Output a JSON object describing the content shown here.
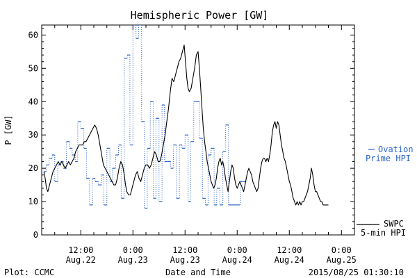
{
  "colors": {
    "swpc": "#000000",
    "ovation": "#2a62c8"
  },
  "chart_data": {
    "type": "line",
    "title": "Hemispheric Power [GW]",
    "ylabel": "P [GW]",
    "xlabel": "Date and Time",
    "x_unit": "hours since 2015-08-21 00:00 UTC",
    "xlim": [
      3,
      75
    ],
    "ylim": [
      0,
      63
    ],
    "yticks": [
      0,
      10,
      20,
      30,
      40,
      50,
      60
    ],
    "xticks": [
      {
        "t": 12,
        "time": "12:00",
        "date": "Aug.22"
      },
      {
        "t": 24,
        "time": "0:00",
        "date": "Aug.23"
      },
      {
        "t": 36,
        "time": "12:00",
        "date": "Aug.23"
      },
      {
        "t": 48,
        "time": "0:00",
        "date": "Aug.24"
      },
      {
        "t": 60,
        "time": "12:00",
        "date": "Aug.24"
      },
      {
        "t": 72,
        "time": "0:00",
        "date": "Aug.25"
      }
    ],
    "footer_left": "Plot: CCMC",
    "footer_right": "2015/08/25 01:30:10",
    "legend": {
      "ovation": {
        "line1": "Ovation",
        "line2": "Prime HPI"
      },
      "swpc": {
        "line1": "SWPC",
        "line2": "5-min HPI"
      }
    },
    "series": [
      {
        "name": "SWPC 5-min HPI",
        "style": "solid",
        "points": [
          [
            3.5,
            19
          ],
          [
            3.8,
            17
          ],
          [
            4.1,
            14
          ],
          [
            4.4,
            13
          ],
          [
            4.8,
            15
          ],
          [
            5.2,
            17
          ],
          [
            5.6,
            19
          ],
          [
            6,
            20
          ],
          [
            6.4,
            21
          ],
          [
            6.8,
            22
          ],
          [
            7.2,
            21
          ],
          [
            7.6,
            22
          ],
          [
            8,
            21
          ],
          [
            8.4,
            20
          ],
          [
            8.8,
            21
          ],
          [
            9.2,
            22
          ],
          [
            9.6,
            21
          ],
          [
            10,
            22
          ],
          [
            10.4,
            23
          ],
          [
            10.8,
            25
          ],
          [
            11.2,
            26
          ],
          [
            11.6,
            27
          ],
          [
            12,
            27
          ],
          [
            12.4,
            27
          ],
          [
            12.8,
            28
          ],
          [
            13.2,
            28
          ],
          [
            13.6,
            29
          ],
          [
            14,
            30
          ],
          [
            14.4,
            31
          ],
          [
            14.8,
            32
          ],
          [
            15.2,
            33
          ],
          [
            15.6,
            32
          ],
          [
            16,
            30
          ],
          [
            16.4,
            27
          ],
          [
            16.8,
            24
          ],
          [
            17.2,
            21
          ],
          [
            17.6,
            20
          ],
          [
            18,
            19
          ],
          [
            18.4,
            18
          ],
          [
            18.8,
            17
          ],
          [
            19.2,
            16
          ],
          [
            19.6,
            15
          ],
          [
            20,
            15
          ],
          [
            20.4,
            17
          ],
          [
            20.8,
            20
          ],
          [
            21.2,
            22
          ],
          [
            21.6,
            21
          ],
          [
            22,
            18
          ],
          [
            22.3,
            15
          ],
          [
            22.6,
            13
          ],
          [
            23,
            12
          ],
          [
            23.4,
            12
          ],
          [
            23.8,
            14
          ],
          [
            24.2,
            16
          ],
          [
            24.6,
            18
          ],
          [
            25,
            19
          ],
          [
            25.4,
            17
          ],
          [
            25.8,
            16
          ],
          [
            26.2,
            18
          ],
          [
            26.6,
            20
          ],
          [
            27,
            21
          ],
          [
            27.4,
            21
          ],
          [
            27.8,
            20
          ],
          [
            28.2,
            21
          ],
          [
            28.6,
            23
          ],
          [
            29,
            25
          ],
          [
            29.4,
            24
          ],
          [
            29.8,
            22
          ],
          [
            30.2,
            22
          ],
          [
            30.6,
            24
          ],
          [
            31,
            27
          ],
          [
            31.4,
            30
          ],
          [
            31.8,
            34
          ],
          [
            32.2,
            38
          ],
          [
            32.6,
            43
          ],
          [
            33,
            47
          ],
          [
            33.4,
            46
          ],
          [
            33.8,
            48
          ],
          [
            34.2,
            50
          ],
          [
            34.6,
            52
          ],
          [
            35,
            53
          ],
          [
            35.4,
            55
          ],
          [
            35.8,
            57
          ],
          [
            36.1,
            52
          ],
          [
            36.4,
            47
          ],
          [
            36.7,
            44
          ],
          [
            37,
            43
          ],
          [
            37.4,
            44
          ],
          [
            37.8,
            47
          ],
          [
            38.2,
            50
          ],
          [
            38.6,
            54
          ],
          [
            39,
            55
          ],
          [
            39.3,
            50
          ],
          [
            39.6,
            44
          ],
          [
            39.9,
            38
          ],
          [
            40.2,
            32
          ],
          [
            40.5,
            28
          ],
          [
            40.8,
            25
          ],
          [
            41.1,
            22
          ],
          [
            41.4,
            20
          ],
          [
            41.7,
            18
          ],
          [
            42,
            16
          ],
          [
            42.3,
            15
          ],
          [
            42.6,
            14
          ],
          [
            42.9,
            15
          ],
          [
            43.2,
            17
          ],
          [
            43.5,
            20
          ],
          [
            43.8,
            22
          ],
          [
            44.1,
            23
          ],
          [
            44.4,
            21
          ],
          [
            44.7,
            22
          ],
          [
            45,
            20
          ],
          [
            45.3,
            17
          ],
          [
            45.6,
            15
          ],
          [
            45.9,
            13
          ],
          [
            46.2,
            16
          ],
          [
            46.5,
            19
          ],
          [
            46.8,
            21
          ],
          [
            47.1,
            20
          ],
          [
            47.4,
            17
          ],
          [
            47.7,
            15
          ],
          [
            48,
            14
          ],
          [
            48.3,
            15
          ],
          [
            48.6,
            16
          ],
          [
            48.9,
            15
          ],
          [
            49.2,
            14
          ],
          [
            49.5,
            13
          ],
          [
            49.8,
            15
          ],
          [
            50.1,
            17
          ],
          [
            50.4,
            19
          ],
          [
            50.7,
            20
          ],
          [
            51,
            19
          ],
          [
            51.3,
            18
          ],
          [
            51.6,
            16
          ],
          [
            51.9,
            15
          ],
          [
            52.2,
            14
          ],
          [
            52.5,
            13
          ],
          [
            52.8,
            14
          ],
          [
            53.1,
            17
          ],
          [
            53.4,
            20
          ],
          [
            53.7,
            22
          ],
          [
            54,
            23
          ],
          [
            54.3,
            23
          ],
          [
            54.6,
            22
          ],
          [
            54.9,
            23
          ],
          [
            55.2,
            22
          ],
          [
            55.5,
            24
          ],
          [
            55.8,
            27
          ],
          [
            56.1,
            31
          ],
          [
            56.4,
            33
          ],
          [
            56.7,
            34
          ],
          [
            57,
            32
          ],
          [
            57.3,
            34
          ],
          [
            57.6,
            33
          ],
          [
            57.9,
            30
          ],
          [
            58.2,
            27
          ],
          [
            58.5,
            25
          ],
          [
            58.8,
            23
          ],
          [
            59.1,
            22
          ],
          [
            59.4,
            20
          ],
          [
            59.7,
            18
          ],
          [
            60,
            16
          ],
          [
            60.3,
            15
          ],
          [
            60.6,
            13
          ],
          [
            60.9,
            11
          ],
          [
            61.2,
            10
          ],
          [
            61.5,
            9
          ],
          [
            61.8,
            10
          ],
          [
            62.1,
            9
          ],
          [
            62.4,
            10
          ],
          [
            62.7,
            9
          ],
          [
            63,
            10
          ],
          [
            63.3,
            10
          ],
          [
            63.6,
            11
          ],
          [
            63.9,
            12
          ],
          [
            64.2,
            13
          ],
          [
            64.5,
            15
          ],
          [
            64.8,
            17
          ],
          [
            65.1,
            20
          ],
          [
            65.4,
            18
          ],
          [
            65.7,
            15
          ],
          [
            66,
            13
          ],
          [
            66.3,
            13
          ],
          [
            66.6,
            12
          ],
          [
            66.9,
            11
          ],
          [
            67.2,
            10
          ],
          [
            67.5,
            10
          ],
          [
            67.8,
            9
          ],
          [
            68.1,
            9
          ],
          [
            68.4,
            9
          ],
          [
            68.7,
            9
          ],
          [
            69,
            9
          ]
        ]
      },
      {
        "name": "Ovation Prime HPI",
        "style": "step",
        "points": [
          [
            3.5,
            19
          ],
          [
            4,
            21
          ],
          [
            4.7,
            23
          ],
          [
            5.4,
            24
          ],
          [
            6,
            16
          ],
          [
            6.7,
            21
          ],
          [
            7.4,
            22
          ],
          [
            8,
            20
          ],
          [
            8.7,
            28
          ],
          [
            9.4,
            26
          ],
          [
            10,
            24
          ],
          [
            10.7,
            22
          ],
          [
            11.3,
            34
          ],
          [
            12,
            32
          ],
          [
            12.7,
            26
          ],
          [
            13.3,
            17
          ],
          [
            14,
            9
          ],
          [
            14.7,
            17
          ],
          [
            15.3,
            16
          ],
          [
            16,
            15
          ],
          [
            16.7,
            18
          ],
          [
            17.3,
            9
          ],
          [
            18,
            26
          ],
          [
            18.7,
            16
          ],
          [
            19.3,
            20
          ],
          [
            20,
            24
          ],
          [
            20.7,
            27
          ],
          [
            21.3,
            11
          ],
          [
            22,
            53
          ],
          [
            22.7,
            54
          ],
          [
            23.3,
            27
          ],
          [
            24,
            63
          ],
          [
            24.7,
            59
          ],
          [
            25.3,
            63
          ],
          [
            26,
            34
          ],
          [
            26.7,
            8
          ],
          [
            27.3,
            26
          ],
          [
            28,
            40
          ],
          [
            28.7,
            11
          ],
          [
            29.3,
            35
          ],
          [
            30,
            10
          ],
          [
            30.7,
            39
          ],
          [
            31.3,
            22
          ],
          [
            32,
            22
          ],
          [
            32.7,
            20
          ],
          [
            33.3,
            27
          ],
          [
            34,
            11
          ],
          [
            34.7,
            27
          ],
          [
            35.3,
            26
          ],
          [
            36,
            30
          ],
          [
            36.7,
            10
          ],
          [
            37.3,
            28
          ],
          [
            38,
            40
          ],
          [
            38.7,
            40
          ],
          [
            39.3,
            29
          ],
          [
            40,
            11
          ],
          [
            40.7,
            9
          ],
          [
            41.3,
            24
          ],
          [
            42,
            26
          ],
          [
            42.7,
            9
          ],
          [
            43.3,
            14
          ],
          [
            44,
            9
          ],
          [
            44.7,
            25
          ],
          [
            45.3,
            33
          ],
          [
            46,
            9
          ],
          [
            46.7,
            9
          ],
          [
            47.3,
            9
          ],
          [
            48,
            9
          ],
          [
            48.7,
            16
          ],
          [
            49.3,
            16
          ]
        ]
      }
    ]
  }
}
